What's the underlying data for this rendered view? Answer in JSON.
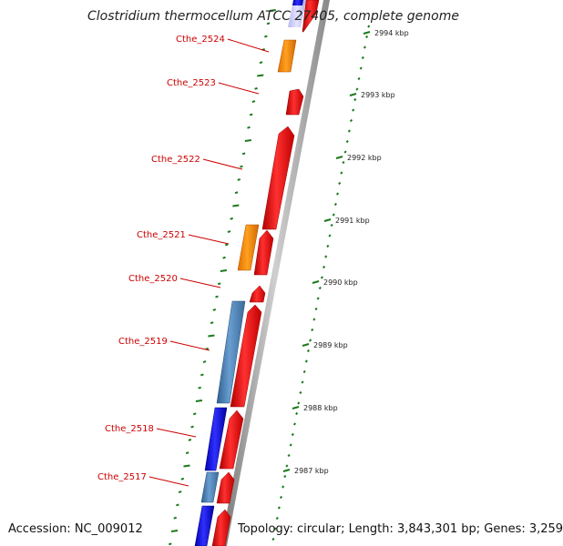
{
  "header": {
    "title": "Clostridium thermocellum ATCC 27405, complete genome"
  },
  "footer": {
    "accession": "Accession: NC_009012",
    "topology": "Topology: circular; Length: 3,843,301 bp; Genes: 3,259"
  },
  "genes": [
    "Cthe_2524",
    "Cthe_2523",
    "Cthe_2522",
    "Cthe_2521",
    "Cthe_2520",
    "Cthe_2519",
    "Cthe_2518",
    "Cthe_2517"
  ],
  "scale": [
    "2994 kbp",
    "2993 kbp",
    "2992 kbp",
    "2991 kbp",
    "2990 kbp",
    "2989 kbp",
    "2988 kbp",
    "2987 kbp"
  ],
  "colors": {
    "label_red": "#cc0000",
    "gene_red": "#ee0000",
    "gene_orange": "#ff8800",
    "gene_blue": "#1a1aee",
    "gene_steelblue": "#4a7fb5",
    "tick_green": "#1a7a1a",
    "backbone_gray": "#9a9a9a"
  }
}
